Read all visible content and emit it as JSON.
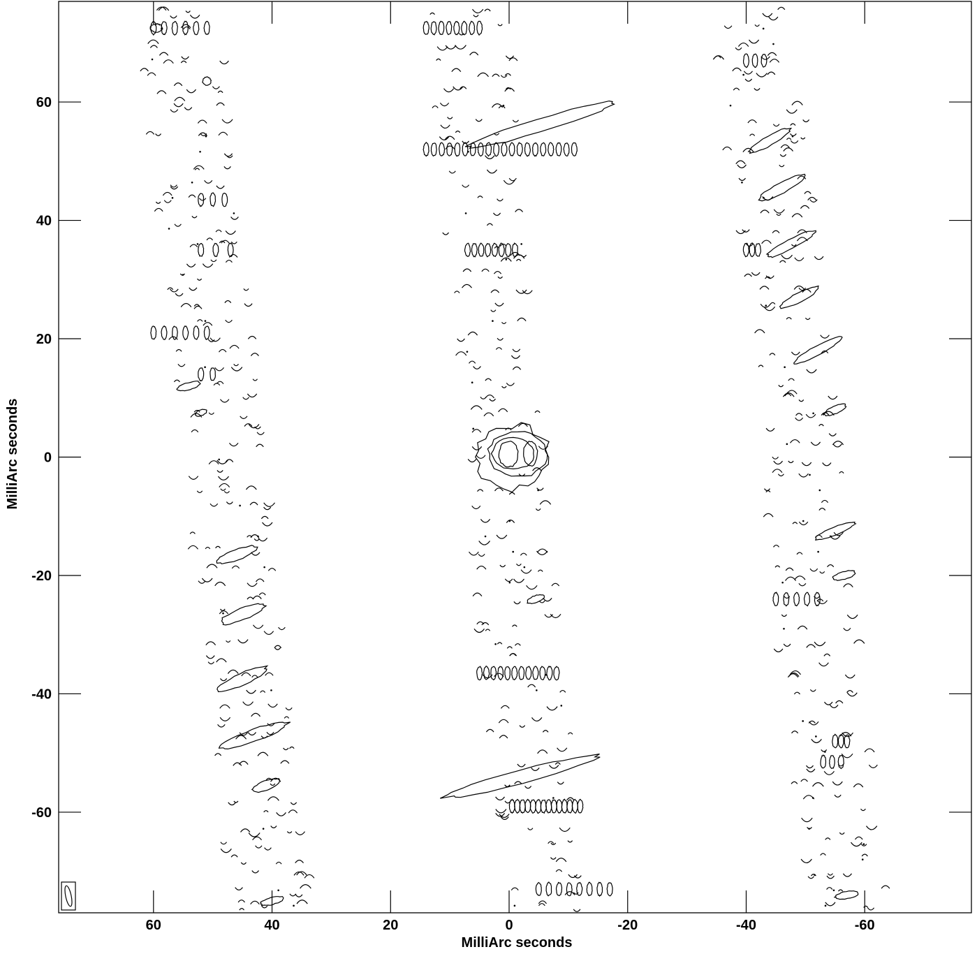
{
  "chart_data": {
    "type": "contour",
    "title": "",
    "xlabel": "MilliArc seconds",
    "ylabel": "MilliArc seconds",
    "xlim": [
      76,
      -78
    ],
    "ylim": [
      -77,
      77
    ],
    "x_ticks": [
      60,
      40,
      20,
      0,
      -20,
      -40,
      -60
    ],
    "x_tick_labels": [
      "60",
      "40",
      "20",
      "0",
      "-20",
      "-40",
      "-60"
    ],
    "y_ticks": [
      60,
      40,
      20,
      0,
      -20,
      -40,
      -60
    ],
    "y_tick_labels": [
      "60",
      "40",
      "20",
      "0",
      "-20",
      "-40",
      "-60"
    ],
    "grid": false,
    "central_source": {
      "x": 0,
      "y": 0,
      "contours": [
        {
          "level": 1,
          "cx": -0.5,
          "cy": 0,
          "rx": 6.2,
          "ry": 5.4
        },
        {
          "level": 2,
          "cx": -1.5,
          "cy": 0.5,
          "rx": 5.0,
          "ry": 3.8
        },
        {
          "level": 3,
          "cx": -0.7,
          "cy": 0.6,
          "rx": 3.6,
          "ry": 2.6
        },
        {
          "level": 4,
          "cx": 0.1,
          "cy": 0.5,
          "rx": 1.6,
          "ry": 2.2
        },
        {
          "level": 4,
          "cx": -3.6,
          "cy": 0.6,
          "rx": 1.2,
          "ry": 2.1
        }
      ]
    },
    "stripes": [
      {
        "name": "left",
        "x_at_top": 56,
        "x_at_bottom": 40
      },
      {
        "name": "center",
        "x_at_top": 7,
        "x_at_bottom": -6
      },
      {
        "name": "right",
        "x_at_top": -41,
        "x_at_bottom": -57
      }
    ],
    "major_contours": [
      {
        "cx": -5,
        "cy": 56,
        "len": 26,
        "w": 2.2,
        "angle": 17
      },
      {
        "cx": -2,
        "cy": -54,
        "len": 26,
        "w": 2.2,
        "angle": 15
      },
      {
        "cx": -44,
        "cy": 53.5,
        "len": 8,
        "w": 1.6,
        "angle": 30
      },
      {
        "cx": -46,
        "cy": 45.5,
        "len": 9,
        "w": 1.8,
        "angle": 28
      },
      {
        "cx": -47.5,
        "cy": 36,
        "len": 9,
        "w": 1.6,
        "angle": 28
      },
      {
        "cx": -49,
        "cy": 27,
        "len": 7,
        "w": 1.6,
        "angle": 28
      },
      {
        "cx": -52,
        "cy": 18,
        "len": 9,
        "w": 1.6,
        "angle": 28
      },
      {
        "cx": -55,
        "cy": 8,
        "len": 4,
        "w": 1.3,
        "angle": 25
      },
      {
        "cx": -55,
        "cy": -12.5,
        "len": 7,
        "w": 1.4,
        "angle": 22
      },
      {
        "cx": -56.5,
        "cy": -20,
        "len": 4,
        "w": 1.3,
        "angle": 15
      },
      {
        "cx": 46,
        "cy": -16.5,
        "len": 7,
        "w": 1.8,
        "angle": 20
      },
      {
        "cx": 45,
        "cy": -26.5,
        "len": 8,
        "w": 2.0,
        "angle": 22
      },
      {
        "cx": 45,
        "cy": -37.5,
        "len": 9,
        "w": 2.0,
        "angle": 25
      },
      {
        "cx": 43,
        "cy": -47,
        "len": 12,
        "w": 2.0,
        "angle": 20
      },
      {
        "cx": 41,
        "cy": -55.5,
        "len": 5,
        "w": 1.6,
        "angle": 20
      },
      {
        "cx": 54,
        "cy": 12,
        "len": 4,
        "w": 1.2,
        "angle": 15
      },
      {
        "cx": 52,
        "cy": 7.5,
        "len": 2,
        "w": 1.0,
        "angle": 20
      },
      {
        "cx": -4.5,
        "cy": -24,
        "len": 3,
        "w": 1.2,
        "angle": 20
      },
      {
        "cx": 59.5,
        "cy": 72.5,
        "len": 2,
        "w": 1.4,
        "angle": 0
      },
      {
        "cx": -57,
        "cy": -74,
        "len": 4,
        "w": 1.2,
        "angle": 10
      },
      {
        "cx": 40,
        "cy": -75,
        "len": 4,
        "w": 1.2,
        "angle": 15
      },
      {
        "cx": 51,
        "cy": 63.5,
        "len": 1.4,
        "w": 1.4,
        "angle": 0
      }
    ],
    "oval_rows": [
      {
        "x0": 60,
        "x1": 51,
        "y": 72.5,
        "n": 6,
        "angle": 0
      },
      {
        "x0": 14,
        "x1": 5,
        "y": 72.5,
        "n": 8,
        "angle": 0
      },
      {
        "x0": 14,
        "x1": -11,
        "y": 52,
        "n": 20,
        "angle": 0
      },
      {
        "x0": 7,
        "x1": -1,
        "y": 35,
        "n": 8,
        "angle": 0
      },
      {
        "x0": -12,
        "x1": -0.5,
        "y": -59,
        "n": 14,
        "angle": 0
      },
      {
        "x0": 5,
        "x1": -8,
        "y": -36.5,
        "n": 12,
        "angle": 0
      },
      {
        "x0": 60,
        "x1": 51,
        "y": 21,
        "n": 6,
        "angle": 0
      },
      {
        "x0": 52,
        "x1": 48,
        "y": 43.5,
        "n": 3,
        "angle": 0
      },
      {
        "x0": 52,
        "x1": 47,
        "y": 35,
        "n": 3,
        "angle": 0
      },
      {
        "x0": -45,
        "x1": -52,
        "y": -24,
        "n": 5,
        "angle": 0
      },
      {
        "x0": -40,
        "x1": -42,
        "y": 35,
        "n": 3,
        "angle": 0
      },
      {
        "x0": -40,
        "x1": -43,
        "y": 67,
        "n": 3,
        "angle": 0
      },
      {
        "x0": -5,
        "x1": -17,
        "y": -73,
        "n": 8,
        "angle": 0
      },
      {
        "x0": 52,
        "x1": 50,
        "y": 14,
        "n": 2,
        "angle": 0
      },
      {
        "x0": -55,
        "x1": -57,
        "y": -48,
        "n": 3,
        "angle": 0
      },
      {
        "x0": -53,
        "x1": -56,
        "y": -51.5,
        "n": 3,
        "angle": 0
      }
    ]
  }
}
